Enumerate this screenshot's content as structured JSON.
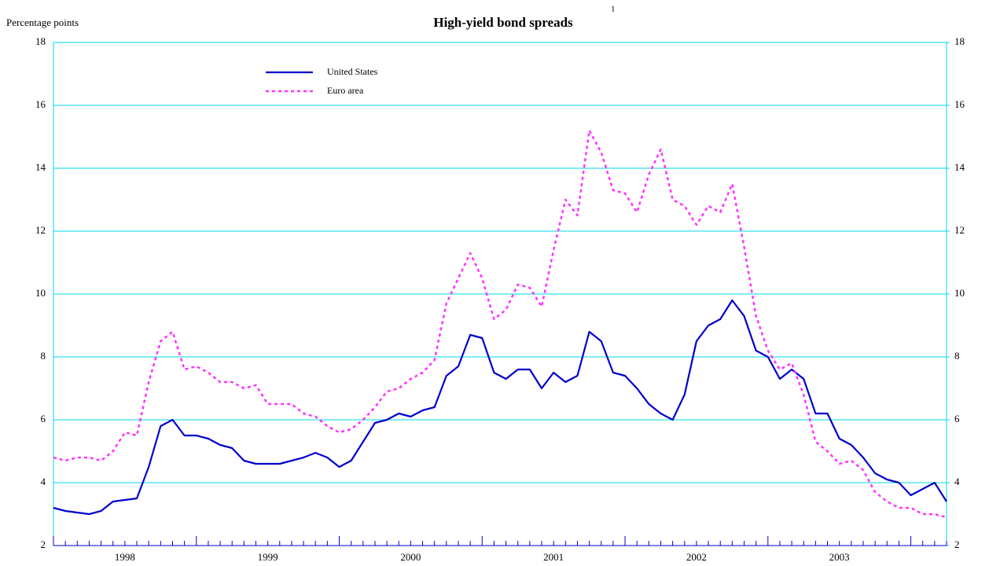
{
  "chart_data": {
    "type": "line",
    "title": "High-yield bond spreads",
    "title_note": "1",
    "y_label": "Percentage points",
    "categories": [
      null,
      null,
      null,
      null,
      null,
      null,
      "1998",
      null,
      null,
      null,
      null,
      null,
      null,
      null,
      null,
      null,
      null,
      null,
      "1999",
      null,
      null,
      null,
      null,
      null,
      null,
      null,
      null,
      null,
      null,
      null,
      "2000",
      null,
      null,
      null,
      null,
      null,
      null,
      null,
      null,
      null,
      null,
      null,
      "2001",
      null,
      null,
      null,
      null,
      null,
      null,
      null,
      null,
      null,
      null,
      null,
      "2002",
      null,
      null,
      null,
      null,
      null,
      null,
      null,
      null,
      null,
      null,
      null,
      "2003",
      null,
      null,
      null,
      null,
      null,
      null,
      null,
      null,
      null
    ],
    "series": [
      {
        "name": "United States",
        "color": "#0000cc",
        "dash": false,
        "values": [
          3.2,
          3.1,
          3.05,
          3.0,
          3.1,
          3.4,
          3.45,
          3.5,
          4.5,
          5.8,
          6.0,
          5.5,
          5.5,
          5.4,
          5.2,
          5.1,
          4.7,
          4.6,
          4.6,
          4.6,
          4.7,
          4.8,
          4.95,
          4.8,
          4.5,
          4.7,
          5.3,
          5.9,
          6.0,
          6.2,
          6.1,
          6.3,
          6.4,
          7.4,
          7.7,
          8.7,
          8.6,
          7.5,
          7.3,
          7.6,
          7.6,
          7.0,
          7.5,
          7.2,
          7.4,
          8.8,
          8.5,
          7.5,
          7.4,
          7.0,
          6.5,
          6.2,
          6.0,
          6.8,
          8.5,
          9.0,
          9.2,
          9.8,
          9.3,
          8.2,
          8.0,
          7.3,
          7.6,
          7.3,
          6.2,
          6.2,
          5.4,
          5.2,
          4.8,
          4.3,
          4.1,
          4.0,
          3.6,
          3.8,
          4.0,
          3.4
        ]
      },
      {
        "name": "Euro area",
        "color": "#ff33ff",
        "dash": true,
        "values": [
          4.8,
          4.7,
          4.8,
          4.8,
          4.7,
          5.0,
          5.6,
          5.5,
          7.2,
          8.5,
          8.8,
          7.6,
          7.7,
          7.5,
          7.2,
          7.2,
          7.0,
          7.1,
          6.5,
          6.5,
          6.5,
          6.2,
          6.1,
          5.8,
          5.6,
          5.7,
          6.0,
          6.4,
          6.9,
          7.0,
          7.3,
          7.5,
          7.9,
          9.7,
          10.5,
          11.3,
          10.5,
          9.2,
          9.5,
          10.3,
          10.2,
          9.6,
          11.4,
          13.0,
          12.5,
          15.2,
          14.5,
          13.3,
          13.2,
          12.6,
          13.8,
          14.6,
          13.0,
          12.8,
          12.2,
          12.8,
          12.6,
          13.5,
          11.5,
          9.3,
          8.2,
          7.6,
          7.8,
          6.8,
          5.3,
          5.0,
          4.6,
          4.7,
          4.4,
          3.7,
          3.4,
          3.2,
          3.2,
          3.0,
          3.0,
          2.9
        ]
      }
    ],
    "ylim": [
      2,
      18
    ],
    "yticks": [
      2,
      4,
      6,
      8,
      10,
      12,
      14,
      16,
      18
    ],
    "y2lim": [
      2,
      18
    ],
    "y2ticks": [
      2,
      4,
      6,
      8,
      10,
      12,
      14,
      16,
      18
    ],
    "grid": true,
    "legend": "upper left"
  }
}
